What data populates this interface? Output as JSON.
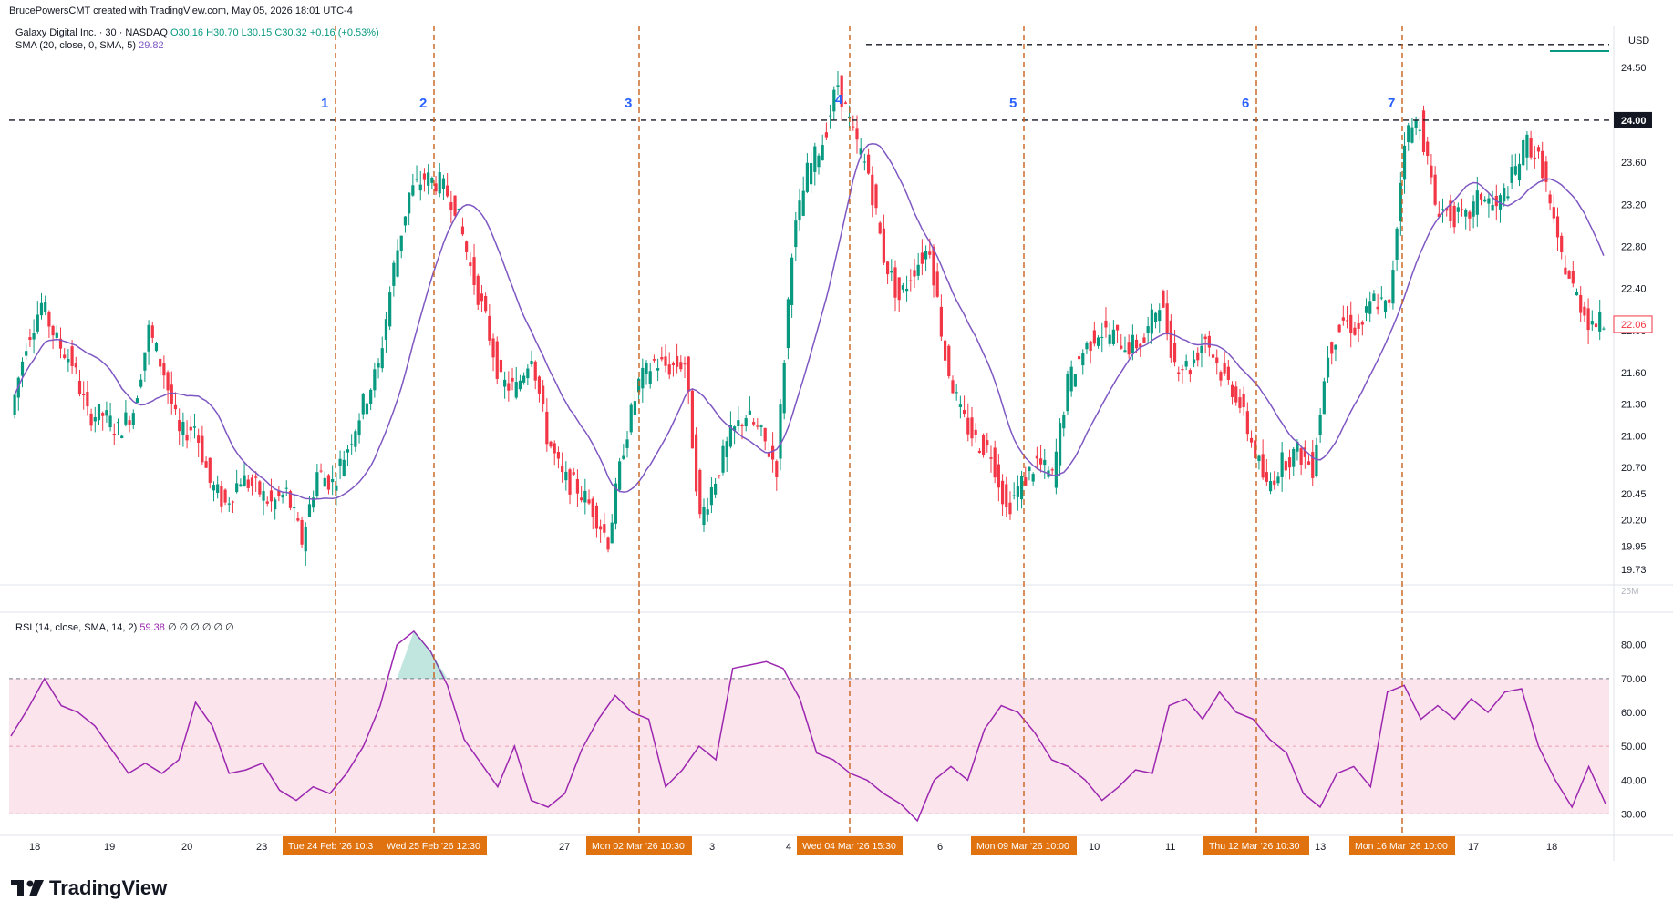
{
  "header": {
    "credit": "BrucePowersCMT created with TradingView.com, May 05, 2026 18:01 UTC-4",
    "symbol_line": "Galaxy Digital Inc. · 30 · NASDAQ",
    "ohlc": "O30.16  H30.70  L30.15  C30.32  +0.16 (+0.53%)",
    "sma_label": "SMA (20, close, 0, SMA, 5)",
    "sma_value": "29.82",
    "rsi_label": "RSI (14, close, SMA, 14, 2)",
    "rsi_value": "59.38",
    "rsi_extra": "∅ ∅ ∅ ∅ ∅ ∅"
  },
  "brand": {
    "name": "TradingView"
  },
  "colors": {
    "up": "#089981",
    "down": "#f23645",
    "sma": "#7e57c2",
    "rsi": "#9c27b0",
    "marker_line": "#c8621c",
    "marker_label": "#e0720f",
    "wave_label": "#2962ff",
    "rsi_band": "#fce4ec",
    "price_badge": "#f23645"
  },
  "chart_data": {
    "type": "candlestick",
    "currency": "USD",
    "price_axis": {
      "ticks": [
        "24.50",
        "24.00",
        "23.60",
        "23.20",
        "22.80",
        "22.40",
        "22.00",
        "21.60",
        "21.30",
        "21.00",
        "20.70",
        "20.45",
        "20.20",
        "19.95",
        "19.73"
      ],
      "volume_tick": "25M",
      "range": [
        19.6,
        24.9
      ]
    },
    "rsi_axis": {
      "ticks": [
        "80.00",
        "70.00",
        "60.00",
        "50.00",
        "40.00",
        "30.00"
      ],
      "overbought": 70,
      "middle": 50,
      "oversold": 30,
      "range": [
        25,
        88
      ]
    },
    "x_axis_labels": [
      "18",
      "19",
      "20",
      "23",
      "Tue 24 Feb '26",
      "10:3",
      "Wed 25 Feb '26",
      "12:30",
      "27",
      "Mon 02 Mar '26",
      "10:30",
      "3",
      "4",
      "Wed 04 Mar '26",
      "15:30",
      "6",
      "Mon 09 Mar '26",
      "10:00",
      "10",
      "11",
      "Thu 12 Mar '26",
      "10:30",
      "13",
      "Mon 16 Mar '26",
      "10:00",
      "17",
      "18"
    ],
    "horizontal_levels": [
      {
        "price": 24.0,
        "label": "24.00",
        "style": "dashed"
      },
      {
        "price": 24.72,
        "label": "",
        "style": "dashed"
      }
    ],
    "last_price": "22.06",
    "wave_markers": [
      {
        "label": "1",
        "date": "Tue 24 Feb '26",
        "time": "10:3"
      },
      {
        "label": "2",
        "date": "Wed 25 Feb '26",
        "time": "12:30"
      },
      {
        "label": "3",
        "date": "Mon 02 Mar '26",
        "time": "10:30"
      },
      {
        "label": "4",
        "date": "Wed 04 Mar '26",
        "time": "15:30"
      },
      {
        "label": "5",
        "date": "Mon 09 Mar '26",
        "time": "10:00"
      },
      {
        "label": "6",
        "date": "Thu 12 Mar '26",
        "time": "10:30"
      },
      {
        "label": "7",
        "date": "Mon 16 Mar '26",
        "time": "10:00"
      }
    ],
    "close_path": [
      21.2,
      21.9,
      22.25,
      21.9,
      21.7,
      21.2,
      21.2,
      21.05,
      21.25,
      22.0,
      21.6,
      21.0,
      21.1,
      20.55,
      20.35,
      20.6,
      20.5,
      20.35,
      20.45,
      20.0,
      20.65,
      20.55,
      20.9,
      21.3,
      21.65,
      22.6,
      23.3,
      23.45,
      23.4,
      23.2,
      22.6,
      22.1,
      21.5,
      21.45,
      21.8,
      21.0,
      20.6,
      20.5,
      20.3,
      20.0,
      20.9,
      21.5,
      21.7,
      21.65,
      21.7,
      20.2,
      20.6,
      21.0,
      21.2,
      21.0,
      20.7,
      22.8,
      23.5,
      23.8,
      24.35,
      23.85,
      23.5,
      22.7,
      22.3,
      22.6,
      22.8,
      21.75,
      21.2,
      20.95,
      20.85,
      20.3,
      20.55,
      20.75,
      20.6,
      21.5,
      21.8,
      22.0,
      21.95,
      21.85,
      21.9,
      22.3,
      21.7,
      21.65,
      21.95,
      21.6,
      21.4,
      20.95,
      20.5,
      20.75,
      20.85,
      20.7,
      21.8,
      22.1,
      22.0,
      22.3,
      22.2,
      23.85,
      24.0,
      23.2,
      23.1,
      23.05,
      23.3,
      23.15,
      23.45,
      23.8,
      23.55,
      22.8,
      22.4,
      22.1,
      22.06
    ],
    "rsi_path": [
      53,
      61,
      70,
      62,
      60,
      56,
      49,
      42,
      45,
      42,
      46,
      63,
      56,
      42,
      43,
      45,
      37,
      34,
      38,
      36,
      42,
      50,
      62,
      80,
      84,
      78,
      68,
      52,
      45,
      38,
      50,
      34,
      32,
      36,
      49,
      58,
      65,
      60,
      58,
      38,
      43,
      50,
      46,
      73,
      74,
      75,
      73,
      64,
      48,
      46,
      42,
      40,
      36,
      33,
      28,
      40,
      44,
      40,
      55,
      62,
      60,
      54,
      46,
      44,
      40,
      34,
      38,
      43,
      42,
      62,
      64,
      58,
      66,
      60,
      58,
      52,
      48,
      36,
      32,
      42,
      44,
      38,
      66,
      68,
      58,
      62,
      58,
      64,
      60,
      66,
      67,
      50,
      40,
      32,
      44,
      33
    ]
  }
}
